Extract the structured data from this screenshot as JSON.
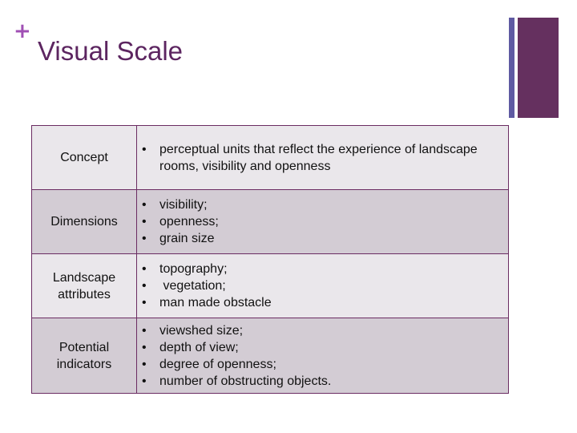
{
  "slide": {
    "plus": "+",
    "title": "Visual Scale"
  },
  "table": {
    "rows": [
      {
        "label": "Concept",
        "items": [
          "perceptual units that reflect the experience of landscape rooms, visibility and openness"
        ]
      },
      {
        "label": "Dimensions",
        "items": [
          "visibility;",
          "openness;",
          "grain size"
        ]
      },
      {
        "label": "Landscape attributes",
        "items": [
          "topography;",
          " vegetation;",
          "man made obstacle"
        ]
      },
      {
        "label": "Potential indicators",
        "items": [
          "viewshed size;",
          "depth of view;",
          "degree of openness;",
          "number of obstructing objects."
        ]
      }
    ]
  },
  "colors": {
    "title": "#5c2560",
    "plus": "#a050b4",
    "accent_bar_thin": "#5f5aa2",
    "accent_bar_thick": "#65305f",
    "row_light": "#eae7eb",
    "row_dark": "#d3ccd4",
    "border": "#6b2c62"
  }
}
